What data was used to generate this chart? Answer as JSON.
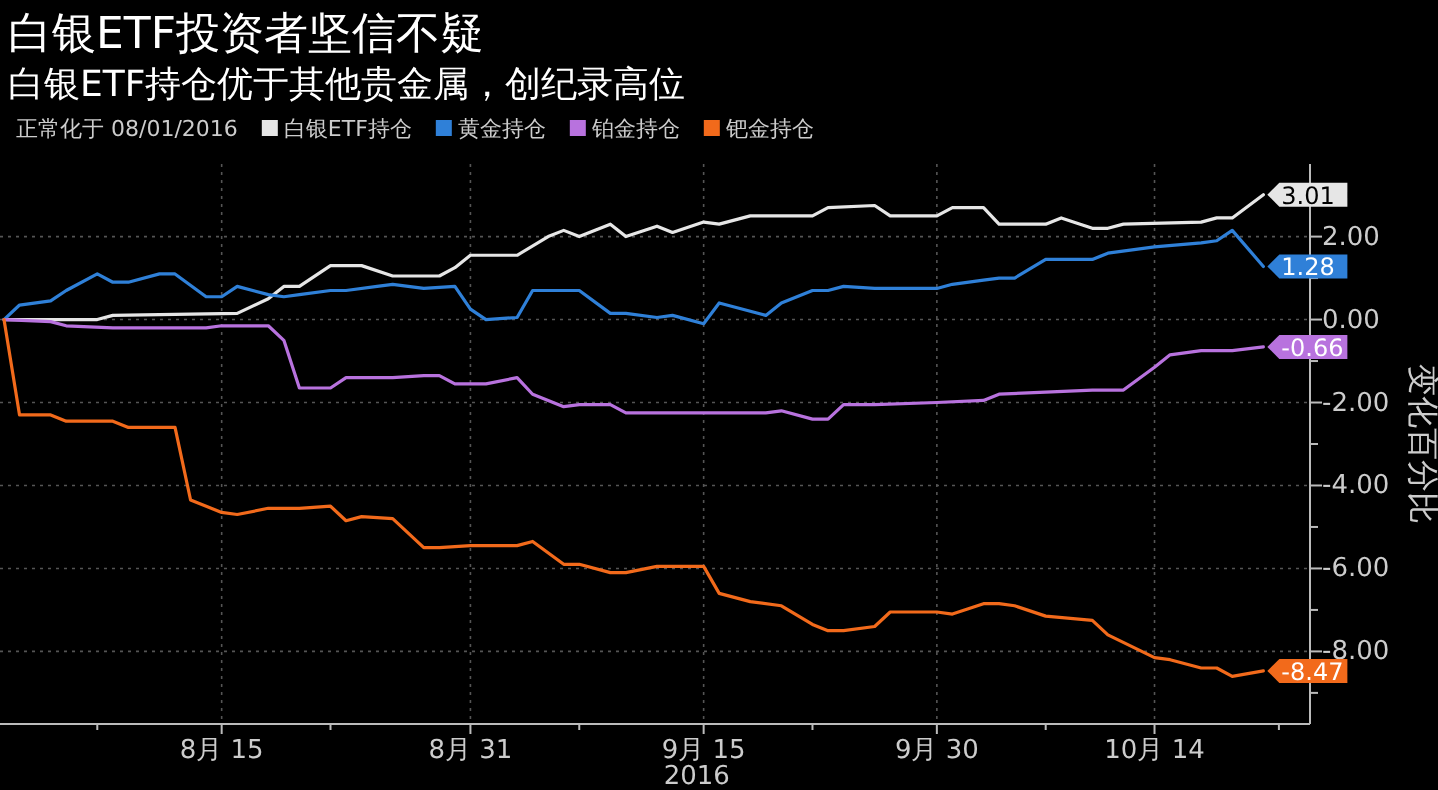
{
  "chart_data": {
    "type": "line",
    "title": "白银ETF投资者坚信不疑",
    "subtitle": "白银ETF持仓优于其他贵金属，创纪录高位",
    "legend_title": "正常化于 08/01/2016",
    "legend": "top",
    "grid": true,
    "xlabel": "2016",
    "ylabel": "变化百分比",
    "xlim": [
      "2016-08-01",
      "2016-10-24"
    ],
    "xticks": [
      {
        "value": "2016-08-07",
        "label": null
      },
      {
        "value": "2016-08-15",
        "label": "8月 15"
      },
      {
        "value": "2016-08-22",
        "label": null
      },
      {
        "value": "2016-08-31",
        "label": "8月 31"
      },
      {
        "value": "2016-09-07",
        "label": null
      },
      {
        "value": "2016-09-15",
        "label": "9月 15"
      },
      {
        "value": "2016-09-22",
        "label": null
      },
      {
        "value": "2016-09-30",
        "label": "9月 30"
      },
      {
        "value": "2016-10-07",
        "label": null
      },
      {
        "value": "2016-10-14",
        "label": "10月 14"
      },
      {
        "value": "2016-10-22",
        "label": null
      }
    ],
    "ylim": [
      -9.75,
      3.75
    ],
    "yticks": [
      {
        "value": -9,
        "label": null
      },
      {
        "value": -8,
        "label": "-8.00"
      },
      {
        "value": -7,
        "label": null
      },
      {
        "value": -6,
        "label": "-6.00"
      },
      {
        "value": -5,
        "label": null
      },
      {
        "value": -4,
        "label": "-4.00"
      },
      {
        "value": -3,
        "label": null
      },
      {
        "value": -2,
        "label": "-2.00"
      },
      {
        "value": -1,
        "label": null
      },
      {
        "value": 0,
        "label": "0.00"
      },
      {
        "value": 1,
        "label": null
      },
      {
        "value": 2,
        "label": "2.00"
      },
      {
        "value": 3,
        "label": null
      }
    ],
    "series": [
      {
        "name": "白银ETF持仓",
        "color": "#e6e6e6",
        "x": [
          "2016-08-01",
          "2016-08-07",
          "2016-08-08",
          "2016-08-16",
          "2016-08-18",
          "2016-08-19",
          "2016-08-20",
          "2016-08-22",
          "2016-08-24",
          "2016-08-26",
          "2016-08-29",
          "2016-08-30",
          "2016-08-31",
          "2016-09-03",
          "2016-09-05",
          "2016-09-06",
          "2016-09-07",
          "2016-09-09",
          "2016-09-10",
          "2016-09-12",
          "2016-09-13",
          "2016-09-15",
          "2016-09-16",
          "2016-09-18",
          "2016-09-22",
          "2016-09-23",
          "2016-09-26",
          "2016-09-27",
          "2016-09-30",
          "2016-10-01",
          "2016-10-03",
          "2016-10-04",
          "2016-10-07",
          "2016-10-08",
          "2016-10-10",
          "2016-10-11",
          "2016-10-12",
          "2016-10-17",
          "2016-10-18",
          "2016-10-19",
          "2016-10-21"
        ],
        "values": [
          0,
          0,
          0.1,
          0.15,
          0.5,
          0.8,
          0.8,
          1.3,
          1.3,
          1.05,
          1.05,
          1.25,
          1.55,
          1.55,
          2.0,
          2.15,
          2.0,
          2.3,
          2.0,
          2.25,
          2.1,
          2.35,
          2.3,
          2.5,
          2.5,
          2.7,
          2.75,
          2.5,
          2.5,
          2.7,
          2.7,
          2.3,
          2.3,
          2.45,
          2.2,
          2.2,
          2.3,
          2.35,
          2.45,
          2.45,
          3.01
        ],
        "value_labels": [
          null,
          null,
          null,
          null,
          null,
          null,
          null,
          null,
          null,
          null,
          null,
          null,
          null,
          null,
          null,
          null,
          null,
          null,
          null,
          null,
          null,
          null,
          null,
          null,
          null,
          null,
          null,
          null,
          null,
          null,
          null,
          null,
          null,
          null,
          null,
          null,
          null,
          null,
          null,
          null,
          "3.01"
        ]
      },
      {
        "name": "黄金持仓",
        "color": "#2f80d8",
        "x": [
          "2016-08-01",
          "2016-08-02",
          "2016-08-04",
          "2016-08-05",
          "2016-08-07",
          "2016-08-08",
          "2016-08-09",
          "2016-08-11",
          "2016-08-12",
          "2016-08-14",
          "2016-08-15",
          "2016-08-16",
          "2016-08-18",
          "2016-08-19",
          "2016-08-20",
          "2016-08-22",
          "2016-08-23",
          "2016-08-25",
          "2016-08-26",
          "2016-08-28",
          "2016-08-30",
          "2016-08-31",
          "2016-09-01",
          "2016-09-03",
          "2016-09-04",
          "2016-09-07",
          "2016-09-09",
          "2016-09-10",
          "2016-09-12",
          "2016-09-13",
          "2016-09-15",
          "2016-09-16",
          "2016-09-19",
          "2016-09-20",
          "2016-09-22",
          "2016-09-23",
          "2016-09-24",
          "2016-09-26",
          "2016-09-30",
          "2016-10-01",
          "2016-10-03",
          "2016-10-04",
          "2016-10-05",
          "2016-10-07",
          "2016-10-10",
          "2016-10-11",
          "2016-10-14",
          "2016-10-17",
          "2016-10-18",
          "2016-10-19",
          "2016-10-21"
        ],
        "values": [
          0,
          0.35,
          0.45,
          0.7,
          1.1,
          0.9,
          0.9,
          1.1,
          1.1,
          0.55,
          0.55,
          0.8,
          0.6,
          0.55,
          0.6,
          0.7,
          0.7,
          0.8,
          0.85,
          0.75,
          0.8,
          0.25,
          0.0,
          0.05,
          0.7,
          0.7,
          0.15,
          0.15,
          0.05,
          0.1,
          -0.1,
          0.4,
          0.1,
          0.4,
          0.7,
          0.7,
          0.8,
          0.75,
          0.75,
          0.85,
          0.95,
          1.0,
          1.0,
          1.45,
          1.45,
          1.6,
          1.75,
          1.85,
          1.9,
          2.15,
          1.28
        ],
        "value_labels": [
          null,
          null,
          null,
          null,
          null,
          null,
          null,
          null,
          null,
          null,
          null,
          null,
          null,
          null,
          null,
          null,
          null,
          null,
          null,
          null,
          null,
          null,
          null,
          null,
          null,
          null,
          null,
          null,
          null,
          null,
          null,
          null,
          null,
          null,
          null,
          null,
          null,
          null,
          null,
          null,
          null,
          null,
          null,
          null,
          null,
          null,
          null,
          null,
          null,
          null,
          "1.28"
        ]
      },
      {
        "name": "铂金持仓",
        "color": "#b872de",
        "x": [
          "2016-08-01",
          "2016-08-04",
          "2016-08-05",
          "2016-08-08",
          "2016-08-14",
          "2016-08-15",
          "2016-08-18",
          "2016-08-19",
          "2016-08-20",
          "2016-08-22",
          "2016-08-23",
          "2016-08-26",
          "2016-08-28",
          "2016-08-29",
          "2016-08-30",
          "2016-09-01",
          "2016-09-03",
          "2016-09-04",
          "2016-09-06",
          "2016-09-07",
          "2016-09-09",
          "2016-09-10",
          "2016-09-16",
          "2016-09-19",
          "2016-09-20",
          "2016-09-22",
          "2016-09-23",
          "2016-09-24",
          "2016-09-26",
          "2016-09-30",
          "2016-10-03",
          "2016-10-04",
          "2016-10-07",
          "2016-10-10",
          "2016-10-12",
          "2016-10-14",
          "2016-10-15",
          "2016-10-17",
          "2016-10-19",
          "2016-10-21"
        ],
        "values": [
          0,
          -0.05,
          -0.15,
          -0.2,
          -0.2,
          -0.15,
          -0.15,
          -0.5,
          -1.65,
          -1.65,
          -1.4,
          -1.4,
          -1.35,
          -1.35,
          -1.55,
          -1.55,
          -1.4,
          -1.8,
          -2.1,
          -2.05,
          -2.05,
          -2.25,
          -2.25,
          -2.25,
          -2.2,
          -2.4,
          -2.4,
          -2.05,
          -2.05,
          -2.0,
          -1.95,
          -1.8,
          -1.75,
          -1.7,
          -1.7,
          -1.15,
          -0.85,
          -0.75,
          -0.75,
          -0.66
        ],
        "value_labels": [
          null,
          null,
          null,
          null,
          null,
          null,
          null,
          null,
          null,
          null,
          null,
          null,
          null,
          null,
          null,
          null,
          null,
          null,
          null,
          null,
          null,
          null,
          null,
          null,
          null,
          null,
          null,
          null,
          null,
          null,
          null,
          null,
          null,
          null,
          null,
          null,
          null,
          null,
          null,
          "-0.66"
        ]
      },
      {
        "name": "钯金持仓",
        "color": "#f26a1b",
        "x": [
          "2016-08-01",
          "2016-08-02",
          "2016-08-04",
          "2016-08-05",
          "2016-08-08",
          "2016-08-09",
          "2016-08-12",
          "2016-08-13",
          "2016-08-15",
          "2016-08-16",
          "2016-08-18",
          "2016-08-20",
          "2016-08-22",
          "2016-08-23",
          "2016-08-24",
          "2016-08-26",
          "2016-08-28",
          "2016-08-29",
          "2016-08-31",
          "2016-09-03",
          "2016-09-04",
          "2016-09-06",
          "2016-09-07",
          "2016-09-09",
          "2016-09-10",
          "2016-09-12",
          "2016-09-15",
          "2016-09-16",
          "2016-09-18",
          "2016-09-20",
          "2016-09-22",
          "2016-09-23",
          "2016-09-24",
          "2016-09-26",
          "2016-09-27",
          "2016-09-30",
          "2016-10-01",
          "2016-10-03",
          "2016-10-04",
          "2016-10-05",
          "2016-10-07",
          "2016-10-10",
          "2016-10-11",
          "2016-10-14",
          "2016-10-15",
          "2016-10-17",
          "2016-10-18",
          "2016-10-19",
          "2016-10-21"
        ],
        "values": [
          0,
          -2.3,
          -2.3,
          -2.45,
          -2.45,
          -2.6,
          -2.6,
          -4.35,
          -4.65,
          -4.7,
          -4.55,
          -4.55,
          -4.5,
          -4.85,
          -4.75,
          -4.8,
          -5.5,
          -5.5,
          -5.45,
          -5.45,
          -5.35,
          -5.9,
          -5.9,
          -6.1,
          -6.1,
          -5.95,
          -5.95,
          -6.6,
          -6.8,
          -6.9,
          -7.35,
          -7.5,
          -7.5,
          -7.4,
          -7.05,
          -7.05,
          -7.1,
          -6.85,
          -6.85,
          -6.9,
          -7.15,
          -7.25,
          -7.6,
          -8.15,
          -8.2,
          -8.4,
          -8.4,
          -8.6,
          -8.47
        ],
        "value_labels": [
          null,
          null,
          null,
          null,
          null,
          null,
          null,
          null,
          null,
          null,
          null,
          null,
          null,
          null,
          null,
          null,
          null,
          null,
          null,
          null,
          null,
          null,
          null,
          null,
          null,
          null,
          null,
          null,
          null,
          null,
          null,
          null,
          null,
          null,
          null,
          null,
          null,
          null,
          null,
          null,
          null,
          null,
          null,
          null,
          null,
          null,
          null,
          null,
          "-8.47"
        ]
      }
    ]
  }
}
